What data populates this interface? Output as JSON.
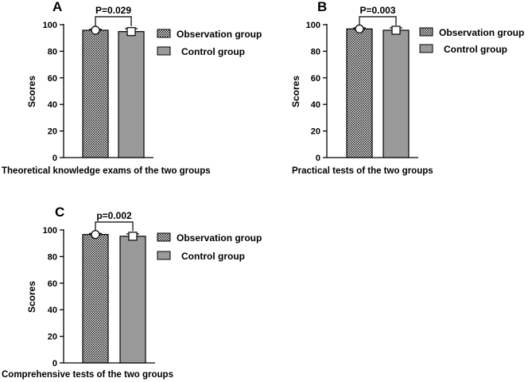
{
  "chart_data": [
    {
      "type": "bar",
      "panel": "A",
      "categories": [
        "Observation group",
        "Control group"
      ],
      "values": [
        95.8,
        94.8
      ],
      "errors": [
        0.8,
        2.2
      ],
      "p_value_label": "P=0.029",
      "xlabel": "Theoretical knowledge exams of the two groups",
      "ylabel": "Scores",
      "ylim": [
        0,
        100
      ],
      "yticks": [
        0,
        20,
        40,
        60,
        80,
        100
      ],
      "legend": [
        "Observation group",
        "Control group"
      ],
      "legend_position": "right"
    },
    {
      "type": "bar",
      "panel": "B",
      "categories": [
        "Observation group",
        "Control group"
      ],
      "values": [
        96.8,
        95.8
      ],
      "errors": [
        0.8,
        1.8
      ],
      "p_value_label": "P=0.003",
      "xlabel": "Practical tests of the two groups",
      "ylabel": "Scores",
      "ylim": [
        0,
        100
      ],
      "yticks": [
        0,
        20,
        40,
        60,
        80,
        100
      ],
      "legend": [
        "Observation group",
        "Control group"
      ],
      "legend_position": "right"
    },
    {
      "type": "bar",
      "panel": "C",
      "categories": [
        "Observation group",
        "Control group"
      ],
      "values": [
        96.6,
        95.3
      ],
      "errors": [
        0.8,
        1.8
      ],
      "p_value_label": "p=0.002",
      "xlabel": "Comprehensive tests of the two groups",
      "ylabel": "Scores",
      "ylim": [
        0,
        100
      ],
      "yticks": [
        0,
        20,
        40,
        60,
        80,
        100
      ],
      "legend": [
        "Observation group",
        "Control group"
      ],
      "legend_position": "right"
    }
  ],
  "colors": {
    "observation_fill": "#ffffff",
    "observation_dot": "#1a1a1a",
    "control_fill": "#9a9a9a",
    "axis": "#000000"
  }
}
